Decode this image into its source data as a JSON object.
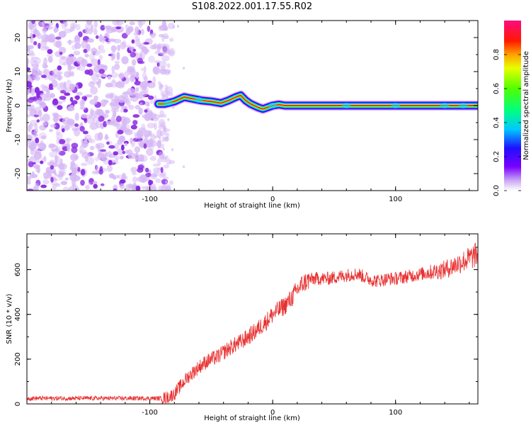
{
  "title": "S108.2022.001.17.55.R02",
  "colors": {
    "signal": "#ff2a2a",
    "snr_line": "#e83030",
    "noise_blob": "#8a2be2",
    "noise_blob_light": "#d6b8f5",
    "axis": "#000000"
  },
  "chart_data": [
    {
      "type": "heatmap",
      "xlabel": "Height of straight line (km)",
      "ylabel": "Frequency (Hz)",
      "xlim": [
        -200,
        167
      ],
      "ylim": [
        -25,
        25
      ],
      "xticks": [
        -100,
        0,
        100
      ],
      "yticks": [
        -20,
        -10,
        0,
        10,
        20
      ],
      "colorbar": {
        "label": "Normalized spectral amplitude",
        "range": [
          0,
          1
        ],
        "ticks": [
          0.0,
          0.2,
          0.4,
          0.6,
          0.8
        ],
        "colormap": "rainbow (white, violet, blue, cyan, green, yellow, orange, red, magenta)"
      },
      "noise_region": {
        "x_range": [
          -200,
          -90
        ],
        "description_visible": false
      },
      "signal_ridge": {
        "x": [
          -93,
          -88,
          -80,
          -72,
          -65,
          -58,
          -50,
          -42,
          -36,
          -30,
          -26,
          -22,
          -18,
          -12,
          -8,
          -4,
          0,
          5,
          10,
          20,
          40,
          60,
          100,
          140,
          167
        ],
        "y": [
          0.5,
          0.5,
          1.2,
          2.5,
          2.0,
          1.5,
          1.2,
          0.7,
          1.5,
          2.5,
          3.0,
          1.5,
          0.5,
          -0.5,
          -1.0,
          -0.5,
          0.0,
          0.3,
          0.0,
          0.0,
          0.0,
          0.0,
          0.0,
          0.0,
          0.0
        ]
      }
    },
    {
      "type": "line",
      "xlabel": "Height of straight line (km)",
      "ylabel": "SNR (10 * v/v)",
      "xlim": [
        -200,
        167
      ],
      "ylim": [
        0,
        760
      ],
      "xticks": [
        -100,
        0,
        100
      ],
      "yticks": [
        0,
        200,
        400,
        600
      ],
      "series": [
        {
          "x": [
            -200,
            -180,
            -160,
            -140,
            -120,
            -100,
            -90,
            -85,
            -80,
            -75,
            -70,
            -65,
            -60,
            -55,
            -50,
            -45,
            -40,
            -35,
            -30,
            -25,
            -20,
            -15,
            -10,
            -5,
            0,
            5,
            10,
            15,
            20,
            25,
            30,
            35,
            40,
            45,
            50,
            55,
            60,
            65,
            70,
            75,
            80,
            85,
            90,
            95,
            100,
            110,
            120,
            130,
            140,
            150,
            160,
            167
          ],
          "values": [
            25,
            25,
            25,
            25,
            25,
            25,
            25,
            30,
            45,
            80,
            115,
            140,
            165,
            185,
            200,
            210,
            230,
            250,
            265,
            280,
            300,
            320,
            345,
            370,
            400,
            420,
            440,
            470,
            510,
            540,
            555,
            560,
            560,
            560,
            565,
            570,
            575,
            580,
            580,
            565,
            555,
            550,
            555,
            560,
            560,
            570,
            580,
            590,
            600,
            625,
            650,
            670
          ]
        }
      ]
    }
  ]
}
